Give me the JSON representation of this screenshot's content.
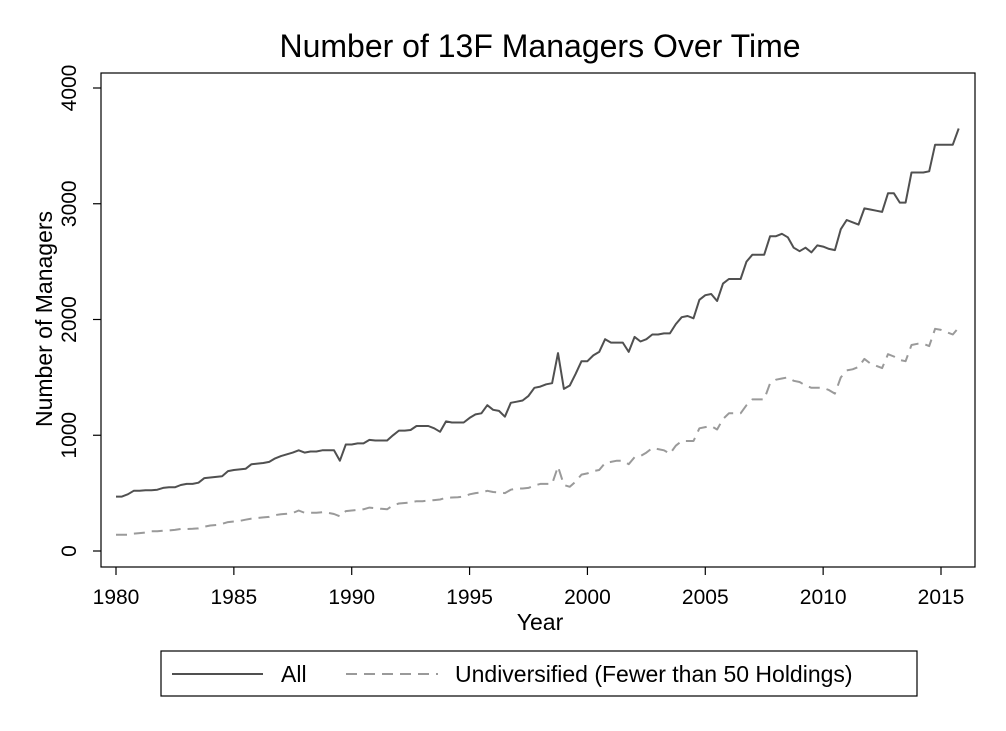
{
  "chart_data": {
    "type": "line",
    "title": "Number of 13F Managers Over Time",
    "xlabel": "Year",
    "ylabel": "Number of Managers",
    "xlim": [
      1979.4,
      1976.7
    ],
    "ylim": [
      -150,
      4150
    ],
    "x_ticks": [
      1980,
      1985,
      1990,
      1995,
      2000,
      2005,
      2010,
      2015
    ],
    "y_ticks": [
      0,
      1000,
      2000,
      3000,
      4000
    ],
    "grid": false,
    "legend_position": "bottom",
    "series": [
      {
        "name": "All",
        "color": "#505050",
        "style": "solid",
        "points": [
          [
            1980.0,
            470
          ],
          [
            1980.25,
            470
          ],
          [
            1980.5,
            490
          ],
          [
            1980.75,
            520
          ],
          [
            1981.0,
            520
          ],
          [
            1981.25,
            525
          ],
          [
            1981.5,
            525
          ],
          [
            1981.75,
            530
          ],
          [
            1982.0,
            545
          ],
          [
            1982.25,
            550
          ],
          [
            1982.5,
            550
          ],
          [
            1982.75,
            570
          ],
          [
            1983.0,
            580
          ],
          [
            1983.25,
            580
          ],
          [
            1983.5,
            590
          ],
          [
            1983.75,
            630
          ],
          [
            1984.0,
            635
          ],
          [
            1984.25,
            640
          ],
          [
            1984.5,
            645
          ],
          [
            1984.75,
            690
          ],
          [
            1985.0,
            700
          ],
          [
            1985.25,
            705
          ],
          [
            1985.5,
            710
          ],
          [
            1985.75,
            750
          ],
          [
            1986.0,
            755
          ],
          [
            1986.25,
            760
          ],
          [
            1986.5,
            770
          ],
          [
            1986.75,
            800
          ],
          [
            1987.0,
            820
          ],
          [
            1987.25,
            835
          ],
          [
            1987.5,
            850
          ],
          [
            1987.75,
            870
          ],
          [
            1988.0,
            850
          ],
          [
            1988.25,
            860
          ],
          [
            1988.5,
            860
          ],
          [
            1988.75,
            870
          ],
          [
            1989.0,
            870
          ],
          [
            1989.25,
            870
          ],
          [
            1989.5,
            780
          ],
          [
            1989.75,
            920
          ],
          [
            1990.0,
            920
          ],
          [
            1990.25,
            930
          ],
          [
            1990.5,
            930
          ],
          [
            1990.75,
            960
          ],
          [
            1991.0,
            955
          ],
          [
            1991.25,
            955
          ],
          [
            1991.5,
            955
          ],
          [
            1991.75,
            1000
          ],
          [
            1992.0,
            1040
          ],
          [
            1992.25,
            1040
          ],
          [
            1992.5,
            1045
          ],
          [
            1992.75,
            1080
          ],
          [
            1993.0,
            1080
          ],
          [
            1993.25,
            1080
          ],
          [
            1993.5,
            1060
          ],
          [
            1993.75,
            1030
          ],
          [
            1994.0,
            1120
          ],
          [
            1994.25,
            1110
          ],
          [
            1994.5,
            1110
          ],
          [
            1994.75,
            1110
          ],
          [
            1995.0,
            1150
          ],
          [
            1995.25,
            1180
          ],
          [
            1995.5,
            1190
          ],
          [
            1995.75,
            1260
          ],
          [
            1996.0,
            1220
          ],
          [
            1996.25,
            1210
          ],
          [
            1996.5,
            1160
          ],
          [
            1996.75,
            1280
          ],
          [
            1997.0,
            1290
          ],
          [
            1997.25,
            1300
          ],
          [
            1997.5,
            1340
          ],
          [
            1997.75,
            1410
          ],
          [
            1998.0,
            1420
          ],
          [
            1998.25,
            1440
          ],
          [
            1998.5,
            1450
          ],
          [
            1998.75,
            1710
          ],
          [
            1999.0,
            1400
          ],
          [
            1999.25,
            1430
          ],
          [
            1999.5,
            1530
          ],
          [
            1999.75,
            1640
          ],
          [
            2000.0,
            1640
          ],
          [
            2000.25,
            1690
          ],
          [
            2000.5,
            1720
          ],
          [
            2000.75,
            1830
          ],
          [
            2001.0,
            1800
          ],
          [
            2001.25,
            1800
          ],
          [
            2001.5,
            1800
          ],
          [
            2001.75,
            1720
          ],
          [
            2002.0,
            1850
          ],
          [
            2002.25,
            1810
          ],
          [
            2002.5,
            1830
          ],
          [
            2002.75,
            1870
          ],
          [
            2003.0,
            1870
          ],
          [
            2003.25,
            1880
          ],
          [
            2003.5,
            1880
          ],
          [
            2003.75,
            1960
          ],
          [
            2004.0,
            2020
          ],
          [
            2004.25,
            2030
          ],
          [
            2004.5,
            2010
          ],
          [
            2004.75,
            2170
          ],
          [
            2005.0,
            2210
          ],
          [
            2005.25,
            2220
          ],
          [
            2005.5,
            2160
          ],
          [
            2005.75,
            2310
          ],
          [
            2006.0,
            2350
          ],
          [
            2006.25,
            2350
          ],
          [
            2006.5,
            2350
          ],
          [
            2006.75,
            2500
          ],
          [
            2007.0,
            2560
          ],
          [
            2007.25,
            2560
          ],
          [
            2007.5,
            2560
          ],
          [
            2007.75,
            2720
          ],
          [
            2008.0,
            2720
          ],
          [
            2008.25,
            2740
          ],
          [
            2008.5,
            2710
          ],
          [
            2008.75,
            2620
          ],
          [
            2009.0,
            2590
          ],
          [
            2009.25,
            2620
          ],
          [
            2009.5,
            2580
          ],
          [
            2009.75,
            2640
          ],
          [
            2010.0,
            2630
          ],
          [
            2010.25,
            2610
          ],
          [
            2010.5,
            2600
          ],
          [
            2010.75,
            2780
          ],
          [
            2011.0,
            2860
          ],
          [
            2011.25,
            2840
          ],
          [
            2011.5,
            2820
          ],
          [
            2011.75,
            2960
          ],
          [
            2012.0,
            2950
          ],
          [
            2012.25,
            2940
          ],
          [
            2012.5,
            2930
          ],
          [
            2012.75,
            3090
          ],
          [
            2013.0,
            3090
          ],
          [
            2013.25,
            3010
          ],
          [
            2013.5,
            3010
          ],
          [
            2013.75,
            3270
          ],
          [
            2014.0,
            3270
          ],
          [
            2014.25,
            3270
          ],
          [
            2014.5,
            3280
          ],
          [
            2014.75,
            3510
          ],
          [
            2015.0,
            3510
          ],
          [
            2015.25,
            3510
          ],
          [
            2015.5,
            3510
          ],
          [
            2015.75,
            3650
          ]
        ]
      },
      {
        "name": "Undiversified (Fewer than 50 Holdings)",
        "color": "#9a9a9a",
        "style": "dashed",
        "points": [
          [
            1980.0,
            140
          ],
          [
            1980.25,
            140
          ],
          [
            1980.5,
            140
          ],
          [
            1980.75,
            150
          ],
          [
            1981.0,
            155
          ],
          [
            1981.25,
            160
          ],
          [
            1981.5,
            170
          ],
          [
            1981.75,
            170
          ],
          [
            1982.0,
            175
          ],
          [
            1982.25,
            178
          ],
          [
            1982.5,
            182
          ],
          [
            1982.75,
            190
          ],
          [
            1983.0,
            190
          ],
          [
            1983.25,
            192
          ],
          [
            1983.5,
            195
          ],
          [
            1983.75,
            210
          ],
          [
            1984.0,
            220
          ],
          [
            1984.25,
            225
          ],
          [
            1984.5,
            235
          ],
          [
            1984.75,
            250
          ],
          [
            1985.0,
            255
          ],
          [
            1985.25,
            260
          ],
          [
            1985.5,
            270
          ],
          [
            1985.75,
            280
          ],
          [
            1986.0,
            285
          ],
          [
            1986.25,
            290
          ],
          [
            1986.5,
            295
          ],
          [
            1986.75,
            310
          ],
          [
            1987.0,
            318
          ],
          [
            1987.25,
            322
          ],
          [
            1987.5,
            328
          ],
          [
            1987.75,
            350
          ],
          [
            1988.0,
            330
          ],
          [
            1988.25,
            330
          ],
          [
            1988.5,
            330
          ],
          [
            1988.75,
            335
          ],
          [
            1989.0,
            330
          ],
          [
            1989.25,
            320
          ],
          [
            1989.5,
            300
          ],
          [
            1989.75,
            345
          ],
          [
            1990.0,
            350
          ],
          [
            1990.25,
            355
          ],
          [
            1990.5,
            360
          ],
          [
            1990.75,
            375
          ],
          [
            1991.0,
            370
          ],
          [
            1991.25,
            365
          ],
          [
            1991.5,
            360
          ],
          [
            1991.75,
            395
          ],
          [
            1992.0,
            410
          ],
          [
            1992.25,
            415
          ],
          [
            1992.5,
            420
          ],
          [
            1992.75,
            430
          ],
          [
            1993.0,
            430
          ],
          [
            1993.25,
            435
          ],
          [
            1993.5,
            440
          ],
          [
            1993.75,
            445
          ],
          [
            1994.0,
            460
          ],
          [
            1994.25,
            462
          ],
          [
            1994.5,
            465
          ],
          [
            1994.75,
            470
          ],
          [
            1995.0,
            490
          ],
          [
            1995.25,
            500
          ],
          [
            1995.5,
            505
          ],
          [
            1995.75,
            520
          ],
          [
            1996.0,
            510
          ],
          [
            1996.25,
            505
          ],
          [
            1996.5,
            500
          ],
          [
            1996.75,
            530
          ],
          [
            1997.0,
            540
          ],
          [
            1997.25,
            540
          ],
          [
            1997.5,
            545
          ],
          [
            1997.75,
            565
          ],
          [
            1998.0,
            580
          ],
          [
            1998.25,
            580
          ],
          [
            1998.5,
            580
          ],
          [
            1998.75,
            730
          ],
          [
            1999.0,
            570
          ],
          [
            1999.25,
            555
          ],
          [
            1999.5,
            600
          ],
          [
            1999.75,
            660
          ],
          [
            2000.0,
            670
          ],
          [
            2000.25,
            690
          ],
          [
            2000.5,
            700
          ],
          [
            2000.75,
            760
          ],
          [
            2001.0,
            770
          ],
          [
            2001.25,
            780
          ],
          [
            2001.5,
            780
          ],
          [
            2001.75,
            750
          ],
          [
            2002.0,
            810
          ],
          [
            2002.25,
            820
          ],
          [
            2002.5,
            850
          ],
          [
            2002.75,
            890
          ],
          [
            2003.0,
            880
          ],
          [
            2003.25,
            870
          ],
          [
            2003.5,
            840
          ],
          [
            2003.75,
            910
          ],
          [
            2004.0,
            950
          ],
          [
            2004.25,
            950
          ],
          [
            2004.5,
            950
          ],
          [
            2004.75,
            1060
          ],
          [
            2005.0,
            1070
          ],
          [
            2005.25,
            1080
          ],
          [
            2005.5,
            1050
          ],
          [
            2005.75,
            1140
          ],
          [
            2006.0,
            1190
          ],
          [
            2006.25,
            1190
          ],
          [
            2006.5,
            1190
          ],
          [
            2006.75,
            1260
          ],
          [
            2007.0,
            1310
          ],
          [
            2007.25,
            1310
          ],
          [
            2007.5,
            1310
          ],
          [
            2007.75,
            1450
          ],
          [
            2008.0,
            1480
          ],
          [
            2008.25,
            1490
          ],
          [
            2008.5,
            1500
          ],
          [
            2008.75,
            1470
          ],
          [
            2009.0,
            1460
          ],
          [
            2009.25,
            1430
          ],
          [
            2009.5,
            1410
          ],
          [
            2009.75,
            1410
          ],
          [
            2010.0,
            1410
          ],
          [
            2010.25,
            1390
          ],
          [
            2010.5,
            1360
          ],
          [
            2010.75,
            1500
          ],
          [
            2011.0,
            1560
          ],
          [
            2011.25,
            1570
          ],
          [
            2011.5,
            1590
          ],
          [
            2011.75,
            1660
          ],
          [
            2012.0,
            1620
          ],
          [
            2012.25,
            1600
          ],
          [
            2012.5,
            1580
          ],
          [
            2012.75,
            1700
          ],
          [
            2013.0,
            1680
          ],
          [
            2013.25,
            1650
          ],
          [
            2013.5,
            1640
          ],
          [
            2013.75,
            1780
          ],
          [
            2014.0,
            1790
          ],
          [
            2014.25,
            1790
          ],
          [
            2014.5,
            1770
          ],
          [
            2014.75,
            1920
          ],
          [
            2015.0,
            1910
          ],
          [
            2015.25,
            1890
          ],
          [
            2015.5,
            1870
          ],
          [
            2015.75,
            1930
          ]
        ]
      }
    ]
  }
}
